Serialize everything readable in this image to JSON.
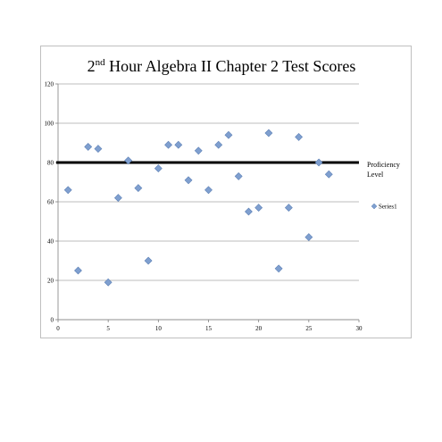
{
  "chart_data": {
    "type": "scatter",
    "title_main": "2",
    "title_sup": "nd",
    "title_rest": " Hour Algebra II Chapter 2 Test Scores",
    "xlabel": "",
    "ylabel": "",
    "xlim": [
      0,
      30
    ],
    "ylim": [
      0,
      120
    ],
    "x_ticks": [
      0,
      5,
      10,
      15,
      20,
      25,
      30
    ],
    "y_ticks": [
      0,
      20,
      40,
      60,
      80,
      100,
      120
    ],
    "grid": "horizontal",
    "legend_position": "right",
    "series": [
      {
        "name": "Series1",
        "color": "#7f9fcf",
        "points": [
          [
            1,
            66
          ],
          [
            2,
            25
          ],
          [
            3,
            88
          ],
          [
            4,
            87
          ],
          [
            5,
            19
          ],
          [
            6,
            62
          ],
          [
            7,
            81
          ],
          [
            8,
            67
          ],
          [
            9,
            30
          ],
          [
            10,
            77
          ],
          [
            11,
            89
          ],
          [
            12,
            89
          ],
          [
            13,
            71
          ],
          [
            14,
            86
          ],
          [
            15,
            66
          ],
          [
            16,
            89
          ],
          [
            17,
            94
          ],
          [
            18,
            73
          ],
          [
            19,
            55
          ],
          [
            20,
            57
          ],
          [
            21,
            95
          ],
          [
            22,
            26
          ],
          [
            23,
            57
          ],
          [
            24,
            93
          ],
          [
            25,
            42
          ],
          [
            26,
            80
          ],
          [
            27,
            74
          ]
        ]
      }
    ],
    "reference_line": {
      "y": 80,
      "label_line1": "Proficiency",
      "label_line2": "Level",
      "color": "#000000"
    }
  }
}
